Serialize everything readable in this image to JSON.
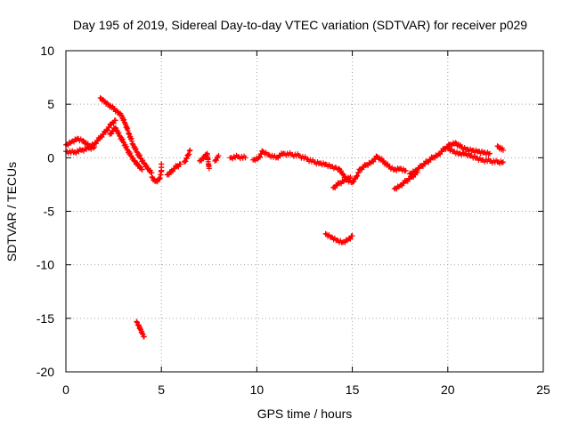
{
  "chart_data": {
    "type": "scatter",
    "title": "Day 195 of 2019, Sidereal Day-to-day VTEC variation (SDTVAR) for receiver p029",
    "xlabel": "GPS time / hours",
    "ylabel": "SDTVAR / TECUs",
    "xlim": [
      0,
      25
    ],
    "ylim": [
      -20,
      10
    ],
    "xticks": [
      0,
      5,
      10,
      15,
      20,
      25
    ],
    "yticks": [
      10,
      5,
      0,
      -5,
      -10,
      -15,
      -20
    ],
    "grid": true,
    "marker": "+",
    "color": "#ff0000",
    "series": [
      {
        "name": "SDTVAR",
        "segments": [
          [
            [
              0.0,
              1.2
            ],
            [
              0.3,
              1.5
            ],
            [
              0.6,
              1.8
            ],
            [
              0.9,
              1.6
            ],
            [
              1.2,
              1.1
            ],
            [
              1.5,
              1.3
            ],
            [
              1.8,
              1.9
            ],
            [
              2.1,
              2.5
            ],
            [
              2.4,
              3.2
            ],
            [
              2.6,
              3.5
            ]
          ],
          [
            [
              0.0,
              0.6
            ],
            [
              0.4,
              0.5
            ],
            [
              0.8,
              0.7
            ],
            [
              1.2,
              0.9
            ],
            [
              1.5,
              1.0
            ]
          ],
          [
            [
              1.8,
              5.6
            ],
            [
              2.0,
              5.3
            ],
            [
              2.2,
              5.0
            ],
            [
              2.5,
              4.6
            ],
            [
              2.7,
              4.3
            ],
            [
              2.9,
              4.0
            ],
            [
              3.1,
              3.2
            ],
            [
              3.3,
              2.3
            ],
            [
              3.5,
              1.3
            ],
            [
              3.7,
              0.6
            ],
            [
              3.9,
              0.0
            ],
            [
              4.1,
              -0.5
            ],
            [
              4.3,
              -1.0
            ],
            [
              4.5,
              -1.4
            ]
          ],
          [
            [
              2.3,
              2.2
            ],
            [
              2.6,
              2.8
            ],
            [
              2.8,
              2.1
            ],
            [
              3.0,
              1.5
            ],
            [
              3.2,
              0.8
            ],
            [
              3.4,
              0.2
            ],
            [
              3.6,
              -0.3
            ],
            [
              3.8,
              -0.7
            ],
            [
              4.0,
              -1.1
            ]
          ],
          [
            [
              4.5,
              -1.8
            ],
            [
              4.7,
              -2.2
            ],
            [
              4.9,
              -2.0
            ],
            [
              5.0,
              -1.3
            ],
            [
              5.0,
              -0.6
            ]
          ],
          [
            [
              5.3,
              -1.6
            ],
            [
              5.5,
              -1.3
            ],
            [
              5.8,
              -0.8
            ],
            [
              6.0,
              -0.6
            ]
          ],
          [
            [
              6.2,
              -0.4
            ],
            [
              6.4,
              0.2
            ],
            [
              6.5,
              0.7
            ]
          ],
          [
            [
              7.0,
              -0.3
            ],
            [
              7.2,
              0.0
            ],
            [
              7.4,
              0.4
            ],
            [
              7.5,
              -1.0
            ]
          ],
          [
            [
              7.8,
              -0.3
            ],
            [
              8.0,
              0.2
            ]
          ],
          [
            [
              8.6,
              0.0
            ],
            [
              9.0,
              0.1
            ],
            [
              9.4,
              0.0
            ]
          ],
          [
            [
              9.8,
              -0.2
            ],
            [
              10.1,
              0.0
            ],
            [
              10.3,
              0.6
            ],
            [
              10.6,
              0.3
            ],
            [
              11.0,
              0.0
            ],
            [
              11.4,
              0.4
            ],
            [
              11.8,
              0.3
            ],
            [
              12.2,
              0.2
            ],
            [
              12.6,
              -0.1
            ],
            [
              13.0,
              -0.4
            ],
            [
              13.3,
              -0.5
            ],
            [
              13.6,
              -0.6
            ],
            [
              13.9,
              -0.8
            ],
            [
              14.1,
              -0.9
            ],
            [
              14.3,
              -1.0
            ],
            [
              14.5,
              -1.5
            ],
            [
              14.7,
              -2.0
            ],
            [
              15.0,
              -2.3
            ],
            [
              15.2,
              -1.8
            ],
            [
              15.4,
              -1.1
            ],
            [
              15.7,
              -0.7
            ],
            [
              16.0,
              -0.4
            ],
            [
              16.3,
              0.1
            ],
            [
              16.6,
              -0.3
            ],
            [
              16.9,
              -0.8
            ],
            [
              17.2,
              -1.1
            ],
            [
              17.5,
              -1.0
            ],
            [
              17.8,
              -1.2
            ]
          ],
          [
            [
              14.0,
              -2.8
            ],
            [
              14.3,
              -2.4
            ],
            [
              14.6,
              -2.1
            ],
            [
              14.9,
              -1.8
            ]
          ],
          [
            [
              17.2,
              -2.9
            ],
            [
              17.5,
              -2.6
            ],
            [
              17.8,
              -2.2
            ],
            [
              18.1,
              -1.8
            ],
            [
              18.4,
              -1.4
            ]
          ],
          [
            [
              18.0,
              -1.5
            ],
            [
              18.3,
              -1.2
            ],
            [
              18.6,
              -0.8
            ],
            [
              18.9,
              -0.4
            ],
            [
              19.2,
              0.0
            ],
            [
              19.5,
              0.3
            ],
            [
              19.8,
              0.8
            ],
            [
              20.1,
              1.2
            ],
            [
              20.4,
              1.4
            ],
            [
              20.7,
              1.0
            ],
            [
              21.0,
              0.8
            ],
            [
              21.3,
              0.7
            ],
            [
              21.6,
              0.6
            ],
            [
              21.9,
              0.5
            ],
            [
              22.2,
              0.4
            ]
          ],
          [
            [
              20.0,
              0.9
            ],
            [
              20.3,
              0.6
            ],
            [
              20.6,
              0.4
            ],
            [
              20.9,
              0.4
            ],
            [
              21.2,
              0.2
            ],
            [
              21.5,
              0.0
            ],
            [
              21.8,
              -0.2
            ],
            [
              22.2,
              -0.3
            ],
            [
              22.6,
              -0.4
            ],
            [
              22.9,
              -0.4
            ]
          ],
          [
            [
              22.6,
              1.1
            ],
            [
              22.9,
              0.7
            ]
          ],
          [
            [
              13.6,
              -7.1
            ],
            [
              13.9,
              -7.4
            ],
            [
              14.2,
              -7.7
            ],
            [
              14.5,
              -7.9
            ],
            [
              14.8,
              -7.6
            ],
            [
              15.0,
              -7.3
            ]
          ],
          [
            [
              3.7,
              -15.3
            ],
            [
              3.8,
              -15.6
            ],
            [
              3.9,
              -16.0
            ],
            [
              4.0,
              -16.4
            ],
            [
              4.1,
              -16.7
            ]
          ]
        ]
      }
    ]
  }
}
